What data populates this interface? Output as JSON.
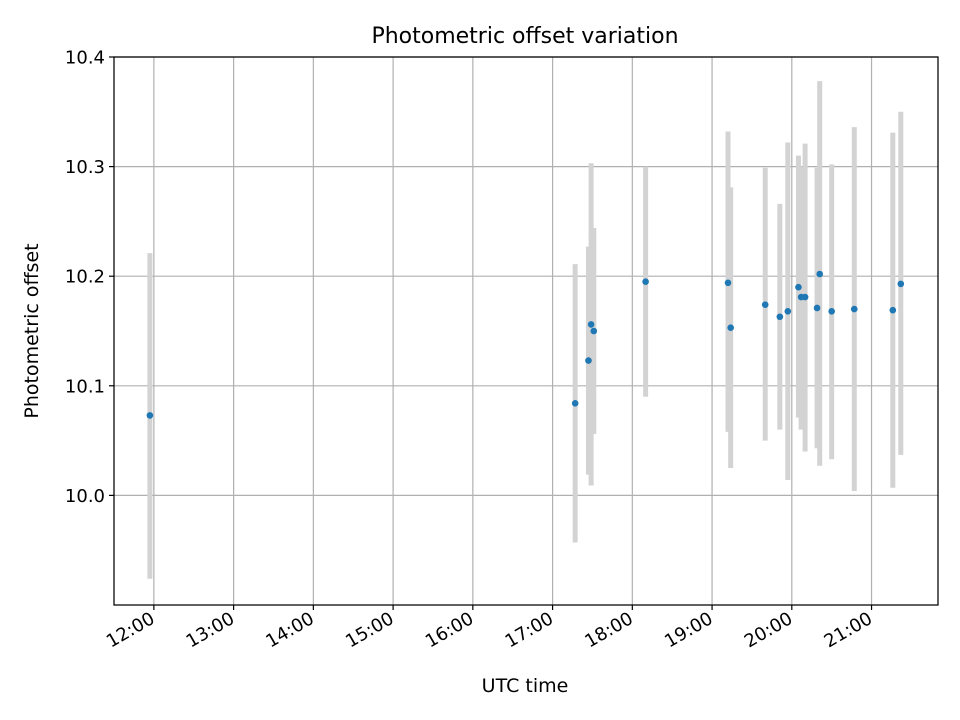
{
  "chart_data": {
    "type": "scatter",
    "title": "Photometric offset variation",
    "xlabel": "UTC time",
    "ylabel": "Photometric offset",
    "x_unit": "UTC hour",
    "xlim": [
      "11:30",
      "21:50"
    ],
    "ylim": [
      9.9,
      10.4
    ],
    "x_ticks": [
      {
        "x": "12:00",
        "label": "12:00"
      },
      {
        "x": "13:00",
        "label": "13:00"
      },
      {
        "x": "14:00",
        "label": "14:00"
      },
      {
        "x": "15:00",
        "label": "15:00"
      },
      {
        "x": "16:00",
        "label": "16:00"
      },
      {
        "x": "17:00",
        "label": "17:00"
      },
      {
        "x": "18:00",
        "label": "18:00"
      },
      {
        "x": "19:00",
        "label": "19:00"
      },
      {
        "x": "20:00",
        "label": "20:00"
      },
      {
        "x": "21:00",
        "label": "21:00"
      }
    ],
    "y_ticks": [
      {
        "y": 10.0,
        "label": "10.0"
      },
      {
        "y": 10.1,
        "label": "10.1"
      },
      {
        "y": 10.2,
        "label": "10.2"
      },
      {
        "y": 10.3,
        "label": "10.3"
      },
      {
        "y": 10.4,
        "label": "10.4"
      }
    ],
    "grid": true,
    "legend": "none",
    "colors": {
      "point": "#1f77b4",
      "errorbar": "#d3d3d3",
      "grid": "#b0b0b0"
    },
    "points": [
      {
        "x": "11:57",
        "y": 10.073,
        "err_low": 9.924,
        "err_high": 10.221
      },
      {
        "x": "17:17",
        "y": 10.084,
        "err_low": 9.957,
        "err_high": 10.211
      },
      {
        "x": "17:27",
        "y": 10.123,
        "err_low": 10.019,
        "err_high": 10.227
      },
      {
        "x": "17:29",
        "y": 10.156,
        "err_low": 10.009,
        "err_high": 10.303
      },
      {
        "x": "17:31",
        "y": 10.15,
        "err_low": 10.056,
        "err_high": 10.244
      },
      {
        "x": "18:10",
        "y": 10.195,
        "err_low": 10.09,
        "err_high": 10.3
      },
      {
        "x": "19:12",
        "y": 10.194,
        "err_low": 10.058,
        "err_high": 10.332
      },
      {
        "x": "19:14",
        "y": 10.153,
        "err_low": 10.025,
        "err_high": 10.281
      },
      {
        "x": "19:40",
        "y": 10.174,
        "err_low": 10.05,
        "err_high": 10.299
      },
      {
        "x": "19:51",
        "y": 10.163,
        "err_low": 10.06,
        "err_high": 10.266
      },
      {
        "x": "19:57",
        "y": 10.168,
        "err_low": 10.014,
        "err_high": 10.322
      },
      {
        "x": "20:05",
        "y": 10.19,
        "err_low": 10.071,
        "err_high": 10.31
      },
      {
        "x": "20:07",
        "y": 10.181,
        "err_low": 10.06,
        "err_high": 10.3
      },
      {
        "x": "20:10",
        "y": 10.181,
        "err_low": 10.04,
        "err_high": 10.321
      },
      {
        "x": "20:19",
        "y": 10.171,
        "err_low": 10.043,
        "err_high": 10.299
      },
      {
        "x": "20:21",
        "y": 10.202,
        "err_low": 10.027,
        "err_high": 10.378
      },
      {
        "x": "20:30",
        "y": 10.168,
        "err_low": 10.033,
        "err_high": 10.302
      },
      {
        "x": "20:47",
        "y": 10.17,
        "err_low": 10.004,
        "err_high": 10.336
      },
      {
        "x": "21:16",
        "y": 10.169,
        "err_low": 10.007,
        "err_high": 10.331
      },
      {
        "x": "21:22",
        "y": 10.193,
        "err_low": 10.037,
        "err_high": 10.35
      }
    ]
  }
}
